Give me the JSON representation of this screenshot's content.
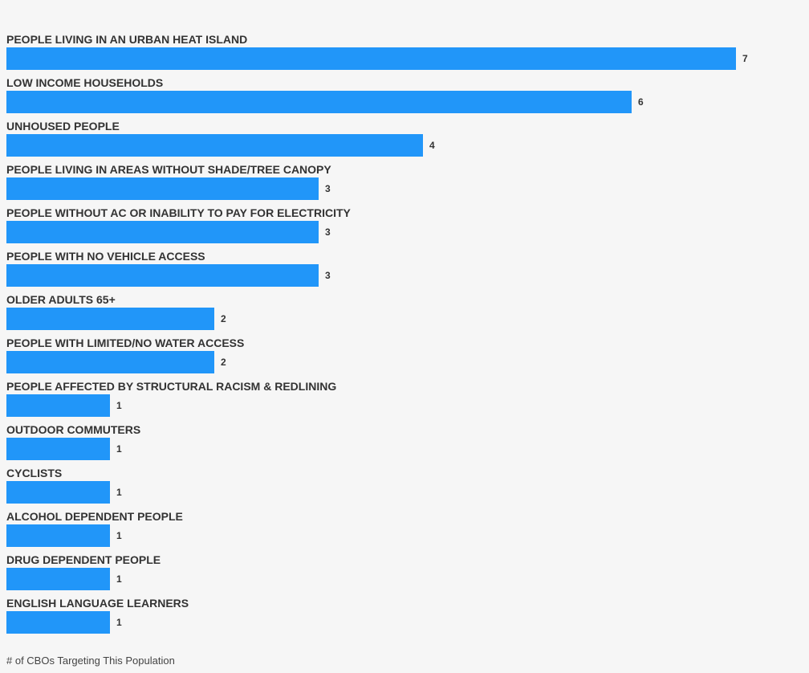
{
  "chart_data": {
    "type": "bar",
    "orientation": "horizontal",
    "categories": [
      "PEOPLE LIVING IN AN URBAN HEAT ISLAND",
      "LOW INCOME HOUSEHOLDS",
      "UNHOUSED PEOPLE",
      "PEOPLE LIVING IN AREAS WITHOUT SHADE/TREE CANOPY",
      "PEOPLE WITHOUT AC OR INABILITY TO PAY FOR ELECTRICITY",
      "PEOPLE WITH NO VEHICLE ACCESS",
      "OLDER ADULTS 65+",
      "PEOPLE WITH LIMITED/NO WATER ACCESS",
      "PEOPLE AFFECTED BY STRUCTURAL RACISM & REDLINING",
      "OUTDOOR COMMUTERS",
      "CYCLISTS",
      "ALCOHOL DEPENDENT PEOPLE",
      "DRUG DEPENDENT PEOPLE",
      "ENGLISH LANGUAGE LEARNERS"
    ],
    "values": [
      7,
      6,
      4,
      3,
      3,
      3,
      2,
      2,
      1,
      1,
      1,
      1,
      1,
      1
    ],
    "xlabel": "# of CBOs Targeting This Population",
    "ylabel": "",
    "bar_color": "#2196f9",
    "grid": false,
    "legend": "none"
  }
}
